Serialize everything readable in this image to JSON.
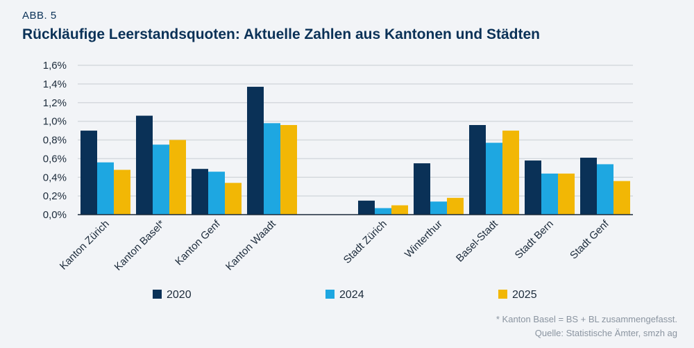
{
  "header": {
    "label": "ABB. 5",
    "title": "Rückläufige Leerstandsquoten: Aktuelle Zahlen aus Kantonen und Städten"
  },
  "footnote": "* Kanton Basel = BS + BL zusammengefasst.",
  "source": "Quelle: Statistische Ämter, smzh ag",
  "chart_data": {
    "type": "bar",
    "categories": [
      "Kanton Zürich",
      "Kanton Basel*",
      "Kanton Genf",
      "Kanton Waadt",
      "",
      "Stadt Zürich",
      "Winterthur",
      "Basel-Stadt",
      "Stadt Bern",
      "Stadt Genf"
    ],
    "series": [
      {
        "name": "2020",
        "color": "#0a3157",
        "values": [
          0.9,
          1.06,
          0.49,
          1.37,
          null,
          0.15,
          0.55,
          0.96,
          0.58,
          0.61
        ]
      },
      {
        "name": "2024",
        "color": "#1ea7e1",
        "values": [
          0.56,
          0.75,
          0.46,
          0.98,
          null,
          0.07,
          0.14,
          0.77,
          0.44,
          0.54
        ]
      },
      {
        "name": "2025",
        "color": "#f2b705",
        "values": [
          0.48,
          0.8,
          0.34,
          0.96,
          null,
          0.1,
          0.18,
          0.9,
          0.44,
          0.36
        ]
      }
    ],
    "yticks": [
      "0,0%",
      "0,2%",
      "0,4%",
      "0,6%",
      "0,8%",
      "1,0%",
      "1,2%",
      "1,4%",
      "1,6%"
    ],
    "ylim": [
      0,
      1.6
    ],
    "grid": true,
    "legend": "bottom"
  }
}
